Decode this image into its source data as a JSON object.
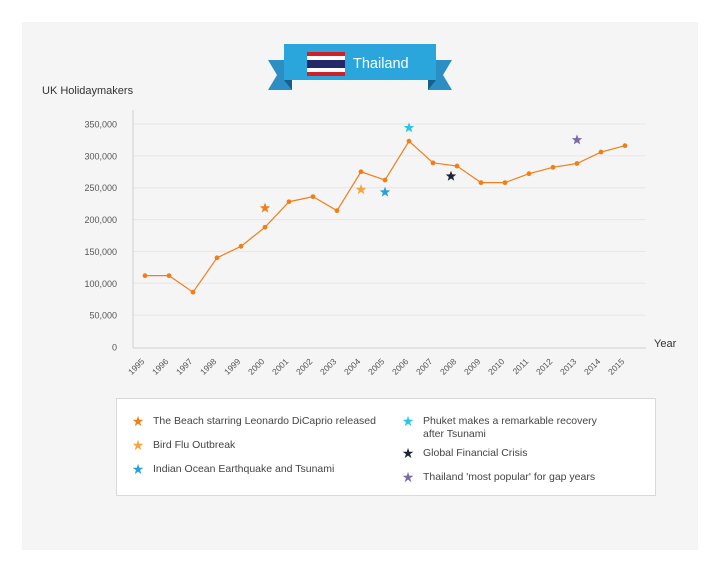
{
  "banner": {
    "title": "Thailand",
    "ribbon_color": "#1e9fd8",
    "ribbon_dark": "#167aa8"
  },
  "chart_data": {
    "type": "line",
    "ylabel": "UK Holidaymakers",
    "xlabel": "Year",
    "ylim": [
      0,
      350000
    ],
    "yticks": [
      0,
      50000,
      100000,
      150000,
      200000,
      250000,
      300000,
      350000
    ],
    "ytick_labels": [
      "0",
      "50,000",
      "100,000",
      "150,000",
      "200,000",
      "250,000",
      "300,000",
      "350,000"
    ],
    "categories": [
      "1995",
      "1996",
      "1997",
      "1998",
      "1999",
      "2000",
      "2001",
      "2002",
      "2003",
      "2004",
      "2005",
      "2006",
      "2007",
      "2008",
      "2009",
      "2010",
      "2011",
      "2012",
      "2013",
      "2014",
      "2015"
    ],
    "series": [
      {
        "values": [
          112000,
          112000,
          86000,
          140000,
          158000,
          188000,
          228000,
          236000,
          214000,
          275000,
          262000,
          323000,
          289000,
          284000,
          258000,
          258000,
          272000,
          282000,
          288000,
          306000,
          316000
        ],
        "color": "#f07f1a"
      }
    ],
    "grid": true,
    "annotations": [
      {
        "year": "2000",
        "value": 218000,
        "color": "#f07f1a",
        "label": "The Beach starring Leonardo DiCaprio released"
      },
      {
        "year": "2004",
        "value": 247000,
        "color": "#f5a53b",
        "label": "Bird Flu Outbreak"
      },
      {
        "year": "2005",
        "value": 243000,
        "color": "#2aa0d6",
        "label": "Indian Ocean Earthquake and Tsunami"
      },
      {
        "year": "2006",
        "value": 344000,
        "color": "#28c6ea",
        "label": "Phuket makes a remarkable recovery\nafter Tsunami"
      },
      {
        "year": "2007",
        "value": 268000,
        "color": "#1e2436",
        "label": "Global Financial Crisis"
      },
      {
        "year": "2013",
        "value": 325000,
        "color": "#7b6aa8",
        "label": "Thailand 'most popular' for gap years"
      }
    ]
  }
}
